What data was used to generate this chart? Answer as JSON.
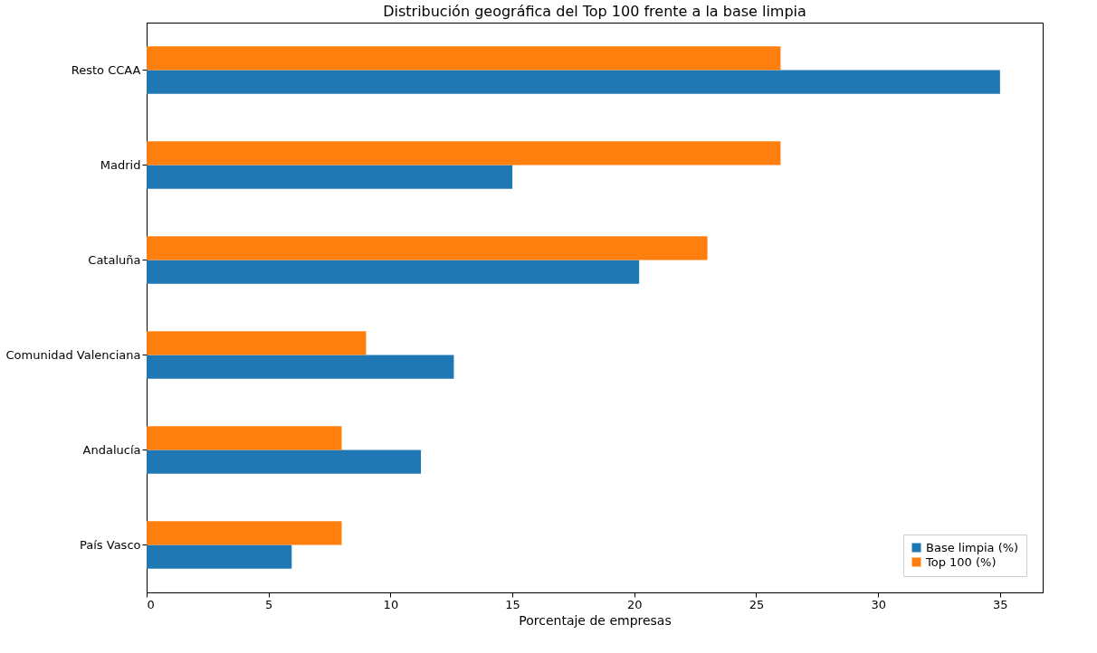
{
  "chart_data": {
    "type": "bar",
    "orientation": "horizontal",
    "title": "Distribución geográfica del Top 100 frente a la base limpia",
    "xlabel": "Porcentaje de empresas",
    "categories": [
      "Resto CCAA",
      "Madrid",
      "Cataluña",
      "Comunidad Valenciana",
      "Andalucía",
      "País Vasco"
    ],
    "series": [
      {
        "name": "Base limpia (%)",
        "color": "#1f77b4",
        "values": [
          35.0,
          15.0,
          20.2,
          12.6,
          11.25,
          5.95
        ]
      },
      {
        "name": "Top 100 (%)",
        "color": "#ff7f0e",
        "values": [
          26.0,
          26.0,
          23.0,
          9.0,
          8.0,
          8.0
        ]
      }
    ],
    "xlim": [
      0,
      36.75
    ],
    "xticks": [
      0,
      5,
      10,
      15,
      20,
      25,
      30,
      35
    ],
    "grid": false,
    "legend": "bottom right"
  }
}
